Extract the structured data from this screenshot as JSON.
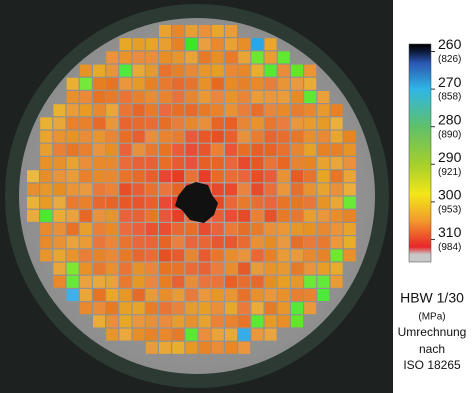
{
  "colorbar": {
    "lim": [
      258,
      316
    ],
    "stops": [
      {
        "value": 258,
        "color": "#000000"
      },
      {
        "value": 260,
        "color": "#0d1a3a"
      },
      {
        "value": 263,
        "color": "#2a56b0"
      },
      {
        "value": 270,
        "color": "#2fb6e6"
      },
      {
        "value": 280,
        "color": "#5fc06a"
      },
      {
        "value": 290,
        "color": "#a6cf2c"
      },
      {
        "value": 298,
        "color": "#f3e619"
      },
      {
        "value": 305,
        "color": "#f29a2c"
      },
      {
        "value": 312,
        "color": "#e8262a"
      },
      {
        "value": 314,
        "color": "#c8c8c8"
      }
    ],
    "ticks": [
      {
        "value": 260,
        "mpa": "(826)"
      },
      {
        "value": 270,
        "mpa": "(858)"
      },
      {
        "value": 280,
        "mpa": "(890)"
      },
      {
        "value": 290,
        "mpa": "(921)"
      },
      {
        "value": 300,
        "mpa": "(953)"
      },
      {
        "value": 310,
        "mpa": "(984)"
      }
    ]
  },
  "caption": [
    "HBW 1/30",
    "(MPa)",
    "Umrechnung",
    "nach",
    "ISO 18265"
  ]
}
